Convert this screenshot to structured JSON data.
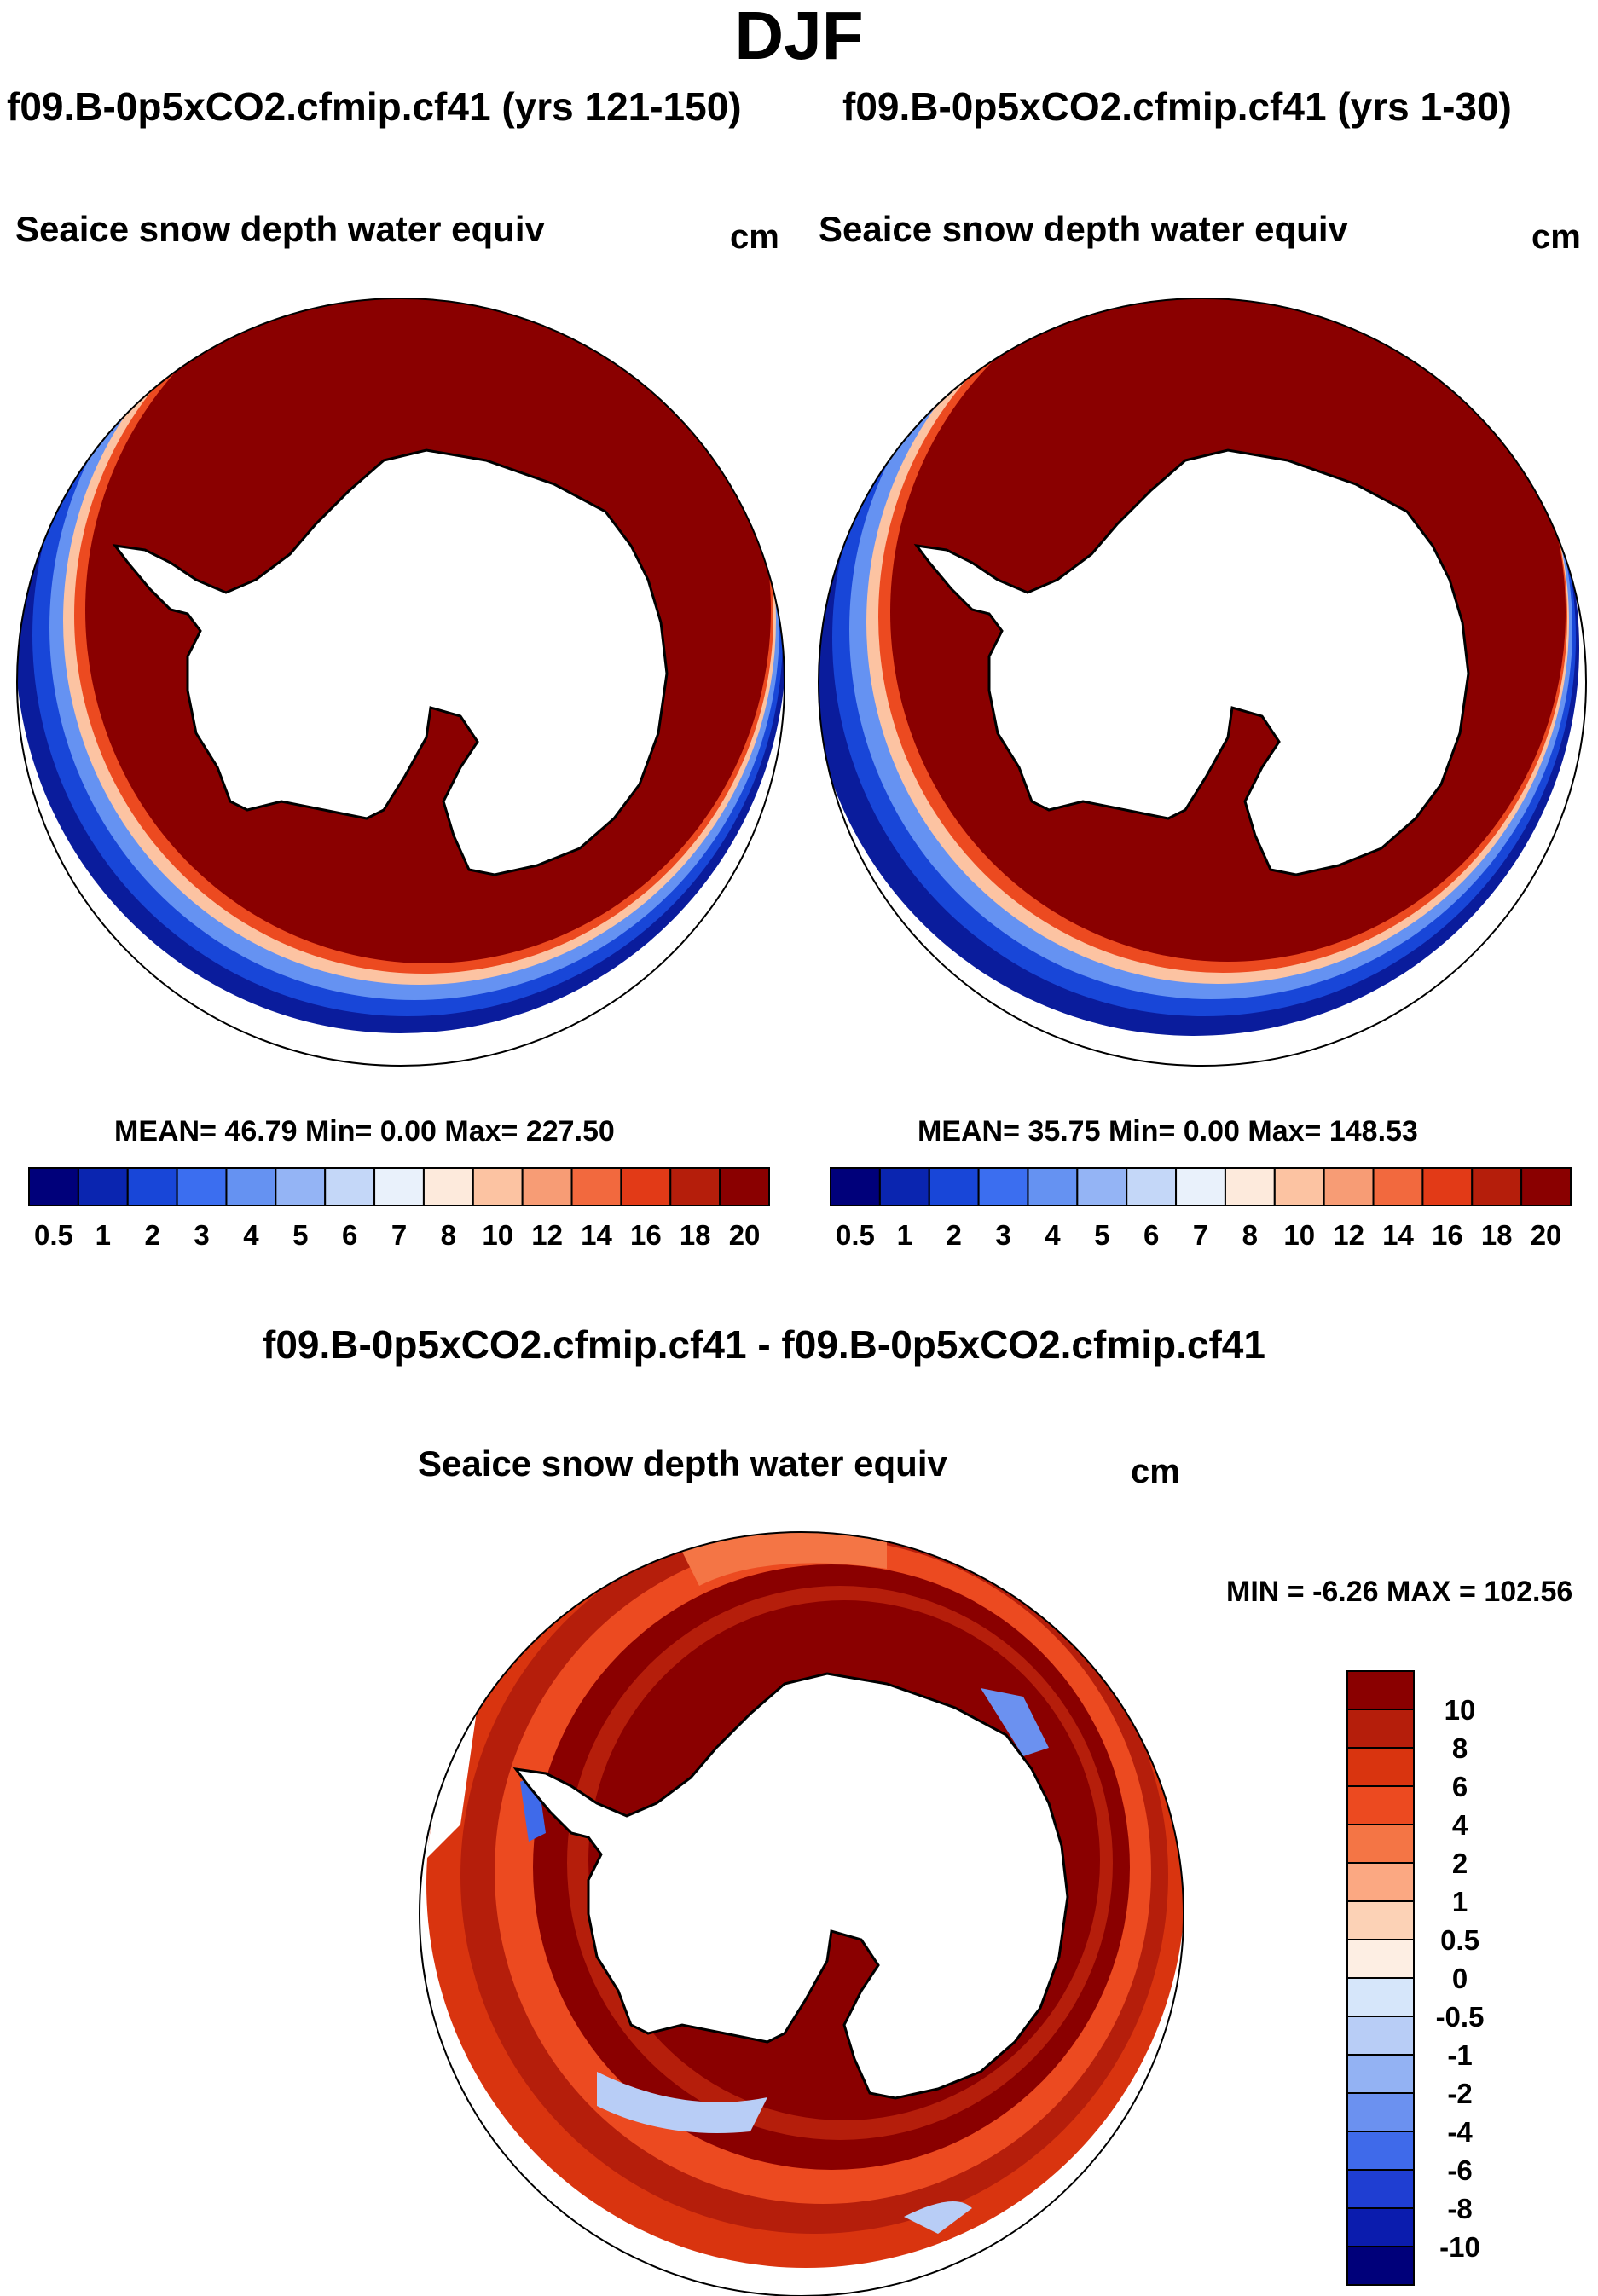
{
  "figure": {
    "season_title": "DJF"
  },
  "panel_left": {
    "case_title": "f09.B-0p5xCO2.cfmip.cf41 (yrs 121-150)",
    "variable": "Seaice snow depth water equiv",
    "units": "cm",
    "stats_text": "MEAN=  46.79  Min=    0.00  Max= 227.50",
    "stats": {
      "mean": 46.79,
      "min": 0.0,
      "max": 227.5
    }
  },
  "panel_right": {
    "case_title": "f09.B-0p5xCO2.cfmip.cf41 (yrs 1-30)",
    "variable": "Seaice snow depth water equiv",
    "units": "cm",
    "stats_text": "MEAN=  35.75  Min=    0.00  Max= 148.53",
    "stats": {
      "mean": 35.75,
      "min": 0.0,
      "max": 148.53
    }
  },
  "panel_diff": {
    "case_title": "f09.B-0p5xCO2.cfmip.cf41 - f09.B-0p5xCO2.cfmip.cf41",
    "variable": "Seaice snow depth water equiv",
    "units": "cm",
    "minmax_text": "MIN =  -6.26 MAX = 102.56",
    "minmax": {
      "min": -6.26,
      "max": 102.56
    }
  },
  "colorbar_abs": {
    "labels": [
      "0.5",
      "1",
      "2",
      "3",
      "4",
      "5",
      "6",
      "7",
      "8",
      "10",
      "12",
      "14",
      "16",
      "18",
      "20"
    ],
    "colors": [
      "#00007a",
      "#0a25b0",
      "#1846d8",
      "#3b6ef0",
      "#6592f2",
      "#94b4f5",
      "#c4d7f8",
      "#e9f1fb",
      "#fdeadc",
      "#fcc3a2",
      "#f79c75",
      "#f2693e",
      "#e23a17",
      "#b51e0b",
      "#8a0000"
    ]
  },
  "colorbar_diff": {
    "labels": [
      "10",
      "8",
      "6",
      "4",
      "2",
      "1",
      "0.5",
      "0",
      "-0.5",
      "-1",
      "-2",
      "-4",
      "-6",
      "-8",
      "-10"
    ],
    "colors": [
      "#8a0000",
      "#b51e0b",
      "#d9340f",
      "#ec4a20",
      "#f47545",
      "#fba882",
      "#fcd2b6",
      "#fdeee3",
      "#d6e6fa",
      "#b8cdf6",
      "#93b2f3",
      "#6b91f0",
      "#3f6aea",
      "#1f3ed2",
      "#0b1cae",
      "#00007a"
    ]
  },
  "map_colors": {
    "land": "#ffffff",
    "ice_max": "#8a0000",
    "ice_high": "#b51e0b",
    "edge_red": "#ec4a20",
    "edge_pink": "#fcc3a2",
    "edge_blue_light": "#6592f2",
    "edge_blue": "#1846d8",
    "edge_navy": "#0a1c9c"
  }
}
